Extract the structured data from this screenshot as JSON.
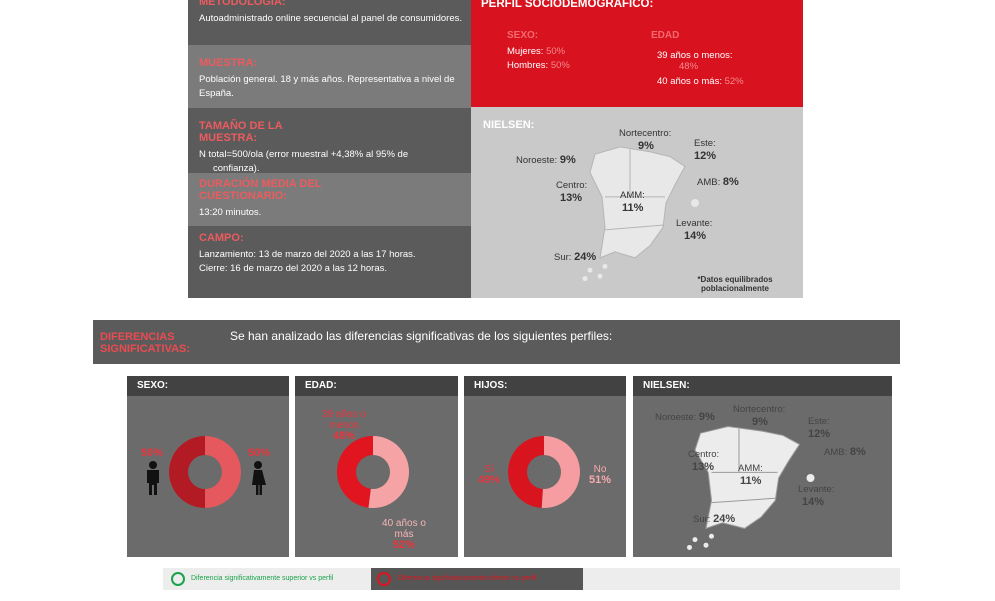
{
  "methodology": {
    "rows": [
      {
        "title": "METODOLOGÍA:",
        "lines": [
          "Autoadministrado online secuencial al panel de consumidores."
        ]
      },
      {
        "title": "MUESTRA:",
        "lines": [
          "Población general. 18 y más años. Representativa a nivel de España."
        ]
      },
      {
        "title": "TAMAÑO DE LA MUESTRA:",
        "lines": [
          "N total=500/ola (error muestral +4,38% al 95% de confianza)."
        ]
      },
      {
        "title": "DURACIÓN MEDIA DEL CUESTIONARIO:",
        "lines": [
          "13:20 minutos."
        ]
      },
      {
        "title": "CAMPO:",
        "lines": [
          "Lanzamiento: 13 de marzo del 2020 a las 17 horas.",
          "Cierre: 16 de marzo del 2020 a las 12 horas."
        ]
      }
    ]
  },
  "profile": {
    "title": "PERFIL SOCIODEMOGRÁFICO:",
    "sexo": {
      "title": "SEXO:",
      "items": [
        {
          "label": "Mujeres:",
          "value": "50%"
        },
        {
          "label": "Hombres:",
          "value": "50%"
        }
      ]
    },
    "edad": {
      "title": "EDAD",
      "items": [
        {
          "label": "39 años o menos:",
          "value": "48%"
        },
        {
          "label": "40 años o más:",
          "value": "52%"
        }
      ]
    }
  },
  "nielsen": {
    "title": "NIELSEN:",
    "regions": [
      {
        "name": "Noroeste:",
        "value": "9%"
      },
      {
        "name": "Nortecentro:",
        "value": "9%"
      },
      {
        "name": "Este:",
        "value": "12%"
      },
      {
        "name": "AMB:",
        "value": "8%"
      },
      {
        "name": "Centro:",
        "value": "13%"
      },
      {
        "name": "AMM:",
        "value": "11%"
      },
      {
        "name": "Levante:",
        "value": "14%"
      },
      {
        "name": "Sur:",
        "value": "24%"
      }
    ],
    "note": "*Datos equilibrados poblacionalmente"
  },
  "differences": {
    "title": "DIFERENCIAS SIGNIFICATIVAS:",
    "text": "Se han analizado las diferencias significativas de los siguientes perfiles:",
    "panels": [
      {
        "title": "SEXO:",
        "segments": [
          {
            "value": 50,
            "value_label": "50%",
            "color": "#b31b24"
          },
          {
            "value": 50,
            "value_label": "50%",
            "color": "#e5585d"
          }
        ]
      },
      {
        "title": "EDAD:",
        "segments": [
          {
            "label": "39 años o menos",
            "value": 48,
            "value_label": "48%",
            "color": "#e1151f"
          },
          {
            "label": "40 años o más",
            "value": 52,
            "value_label": "52%",
            "color": "#f5a3a5"
          }
        ]
      },
      {
        "title": "HIJOS:",
        "segments": [
          {
            "label": "Sí",
            "value": 49,
            "value_label": "49%",
            "color": "#d8141e"
          },
          {
            "label": "No",
            "value": 51,
            "value_label": "51%",
            "color": "#f59da0"
          }
        ]
      },
      {
        "title": "NIELSEN:"
      }
    ]
  },
  "legend": {
    "superior": "Diferencia significativamente superior vs perfil",
    "inferior": "Diferencia significativamente inferior vs perfil"
  }
}
